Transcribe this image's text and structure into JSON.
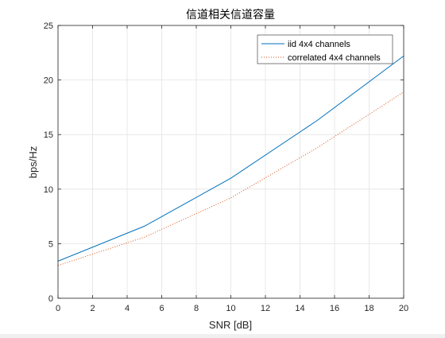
{
  "chart_data": {
    "type": "line",
    "title": "信道相关信道容量",
    "xlabel": "SNR [dB]",
    "ylabel": "bps/Hz",
    "xlim": [
      0,
      20
    ],
    "ylim": [
      0,
      25
    ],
    "xticks": [
      0,
      2,
      4,
      6,
      8,
      10,
      12,
      14,
      16,
      18,
      20
    ],
    "yticks": [
      0,
      5,
      10,
      15,
      20,
      25
    ],
    "grid": true,
    "legend_position": "top-right",
    "series": [
      {
        "name": "iid 4x4 channels",
        "color": "#0072BD",
        "style": "solid",
        "x": [
          0,
          5,
          10,
          15,
          20
        ],
        "y": [
          3.4,
          6.6,
          11.0,
          16.3,
          22.2
        ]
      },
      {
        "name": "correlated 4x4 channels",
        "color": "#D95319",
        "style": "dotted",
        "x": [
          0,
          5,
          10,
          15,
          20
        ],
        "y": [
          3.0,
          5.6,
          9.2,
          13.8,
          18.9
        ]
      }
    ]
  }
}
